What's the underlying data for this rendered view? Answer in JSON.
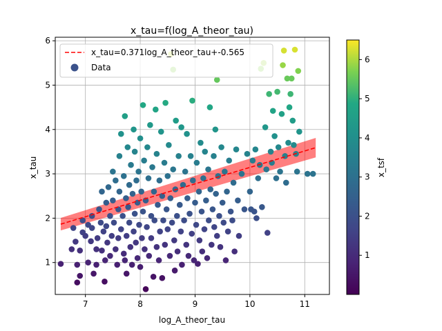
{
  "chart_data": {
    "type": "scatter",
    "title": "x_tau=f(log_A_theor_tau)",
    "xlabel": "log_A_theor_tau",
    "ylabel": "x_tau",
    "xlim": [
      6.45,
      11.45
    ],
    "ylim": [
      0.28,
      6.08
    ],
    "xticks": [
      7,
      8,
      9,
      10,
      11
    ],
    "yticks": [
      1,
      2,
      3,
      4,
      5,
      6
    ],
    "grid": true,
    "legend_position": "top-left",
    "fit": {
      "label": "x_tau=0.371log_A_theor_tau+-0.565",
      "slope": 0.371,
      "intercept": -0.565,
      "x_range": [
        6.55,
        11.2
      ],
      "band_halfwidth": [
        0.14,
        0.22
      ],
      "color": "#ff0000"
    },
    "scatter_label": "Data",
    "colorbar": {
      "label": "x_tsf",
      "range": [
        0,
        6.5
      ],
      "ticks": [
        1,
        2,
        3,
        4,
        5,
        6
      ],
      "colormap": "viridis"
    },
    "points": [
      [
        6.55,
        0.97
      ],
      [
        6.75,
        1.3
      ],
      [
        6.85,
        0.95
      ],
      [
        6.85,
        0.55
      ],
      [
        6.9,
        0.7
      ],
      [
        6.78,
        1.78
      ],
      [
        6.82,
        1.47
      ],
      [
        6.9,
        1.27
      ],
      [
        6.95,
        1.68
      ],
      [
        6.95,
        1.95
      ],
      [
        7.0,
        1.6
      ],
      [
        7.05,
        1.85
      ],
      [
        7.05,
        1.0
      ],
      [
        7.1,
        1.48
      ],
      [
        7.12,
        2.05
      ],
      [
        7.12,
        1.78
      ],
      [
        7.15,
        0.75
      ],
      [
        7.2,
        0.95
      ],
      [
        7.2,
        1.3
      ],
      [
        7.22,
        1.55
      ],
      [
        7.25,
        2.2
      ],
      [
        7.28,
        1.9
      ],
      [
        7.3,
        1.27
      ],
      [
        7.3,
        2.6
      ],
      [
        7.33,
        1.7
      ],
      [
        7.35,
        0.57
      ],
      [
        7.36,
        1.05
      ],
      [
        7.38,
        2.35
      ],
      [
        7.38,
        1.82
      ],
      [
        7.4,
        1.45
      ],
      [
        7.42,
        2.7
      ],
      [
        7.45,
        2.05
      ],
      [
        7.45,
        1.15
      ],
      [
        7.48,
        1.6
      ],
      [
        7.5,
        2.4
      ],
      [
        7.5,
        3.05
      ],
      [
        7.52,
        1.9
      ],
      [
        7.55,
        1.3
      ],
      [
        7.55,
        2.85
      ],
      [
        7.58,
        0.95
      ],
      [
        7.6,
        2.2
      ],
      [
        7.6,
        1.55
      ],
      [
        7.62,
        3.4
      ],
      [
        7.62,
        2.6
      ],
      [
        7.65,
        1.75
      ],
      [
        7.65,
        3.9
      ],
      [
        7.68,
        2.05
      ],
      [
        7.7,
        1.2
      ],
      [
        7.7,
        2.95
      ],
      [
        7.72,
        4.3
      ],
      [
        7.72,
        1.05
      ],
      [
        7.74,
        2.45
      ],
      [
        7.75,
        0.75
      ],
      [
        7.75,
        1.6
      ],
      [
        7.77,
        3.6
      ],
      [
        7.78,
        2.25
      ],
      [
        7.8,
        1.9
      ],
      [
        7.8,
        2.75
      ],
      [
        7.82,
        1.35
      ],
      [
        7.83,
        3.2
      ],
      [
        7.85,
        0.95
      ],
      [
        7.86,
        2.55
      ],
      [
        7.88,
        1.7
      ],
      [
        7.88,
        4.0
      ],
      [
        7.9,
        2.1
      ],
      [
        7.9,
        3.5
      ],
      [
        7.92,
        1.45
      ],
      [
        7.93,
        2.85
      ],
      [
        7.95,
        1.1
      ],
      [
        7.95,
        2.35
      ],
      [
        7.97,
        3.05
      ],
      [
        7.98,
        1.85
      ],
      [
        8.0,
        3.8
      ],
      [
        8.0,
        0.9
      ],
      [
        8.02,
        2.6
      ],
      [
        8.03,
        1.55
      ],
      [
        8.05,
        4.55
      ],
      [
        8.05,
        2.15
      ],
      [
        8.07,
        3.3
      ],
      [
        8.08,
        1.3
      ],
      [
        8.1,
        0.4
      ],
      [
        8.1,
        2.4
      ],
      [
        8.12,
        1.8
      ],
      [
        8.13,
        3.6
      ],
      [
        8.15,
        2.9
      ],
      [
        8.16,
        1.15
      ],
      [
        8.18,
        4.1
      ],
      [
        8.2,
        2.05
      ],
      [
        8.2,
        1.55
      ],
      [
        8.22,
        3.15
      ],
      [
        8.24,
        0.68
      ],
      [
        8.25,
        2.6
      ],
      [
        8.26,
        1.95
      ],
      [
        8.28,
        4.45
      ],
      [
        8.3,
        1.35
      ],
      [
        8.3,
        3.45
      ],
      [
        8.32,
        2.3
      ],
      [
        8.34,
        1.05
      ],
      [
        8.35,
        2.85
      ],
      [
        8.36,
        1.7
      ],
      [
        8.38,
        3.95
      ],
      [
        8.4,
        2.5
      ],
      [
        8.4,
        0.65
      ],
      [
        8.42,
        1.95
      ],
      [
        8.44,
        3.25
      ],
      [
        8.45,
        1.4
      ],
      [
        8.46,
        4.6
      ],
      [
        8.48,
        2.2
      ],
      [
        8.5,
        1.75
      ],
      [
        8.5,
        2.95
      ],
      [
        8.52,
        3.65
      ],
      [
        8.54,
        1.15
      ],
      [
        8.55,
        2.45
      ],
      [
        8.56,
        5.7
      ],
      [
        8.58,
        1.9
      ],
      [
        8.6,
        3.1
      ],
      [
        8.6,
        5.35
      ],
      [
        8.62,
        1.5
      ],
      [
        8.63,
        0.82
      ],
      [
        8.64,
        2.65
      ],
      [
        8.65,
        4.2
      ],
      [
        8.67,
        2.05
      ],
      [
        8.68,
        1.25
      ],
      [
        8.7,
        3.4
      ],
      [
        8.72,
        2.3
      ],
      [
        8.74,
        1.7
      ],
      [
        8.75,
        4.05
      ],
      [
        8.76,
        0.95
      ],
      [
        8.78,
        2.75
      ],
      [
        8.8,
        1.95
      ],
      [
        8.82,
        3.05
      ],
      [
        8.84,
        1.4
      ],
      [
        8.85,
        3.9
      ],
      [
        8.86,
        2.45
      ],
      [
        8.88,
        1.15
      ],
      [
        8.9,
        2.1
      ],
      [
        8.92,
        3.4
      ],
      [
        8.94,
        1.65
      ],
      [
        8.95,
        4.65
      ],
      [
        8.96,
        2.85
      ],
      [
        8.98,
        1.05
      ],
      [
        9.0,
        2.35
      ],
      [
        9.02,
        1.85
      ],
      [
        9.03,
        3.25
      ],
      [
        9.05,
        0.97
      ],
      [
        9.07,
        2.6
      ],
      [
        9.08,
        1.5
      ],
      [
        9.1,
        3.7
      ],
      [
        9.12,
        2.15
      ],
      [
        9.13,
        1.25
      ],
      [
        9.15,
        2.9
      ],
      [
        9.17,
        1.75
      ],
      [
        9.18,
        3.5
      ],
      [
        9.2,
        2.4
      ],
      [
        9.22,
        1.1
      ],
      [
        9.24,
        3.1
      ],
      [
        9.25,
        1.95
      ],
      [
        9.27,
        4.5
      ],
      [
        9.28,
        2.65
      ],
      [
        9.3,
        1.4
      ],
      [
        9.32,
        2.2
      ],
      [
        9.34,
        3.4
      ],
      [
        9.35,
        1.8
      ],
      [
        9.37,
        4.0
      ],
      [
        9.38,
        2.55
      ],
      [
        9.4,
        5.12
      ],
      [
        9.4,
        1.6
      ],
      [
        9.42,
        2.95
      ],
      [
        9.44,
        2.05
      ],
      [
        9.46,
        1.35
      ],
      [
        9.48,
        3.6
      ],
      [
        9.5,
        2.35
      ],
      [
        9.52,
        1.9
      ],
      [
        9.54,
        3.05
      ],
      [
        9.56,
        1.05
      ],
      [
        9.58,
        2.6
      ],
      [
        9.6,
        1.7
      ],
      [
        9.62,
        3.3
      ],
      [
        9.65,
        2.15
      ],
      [
        9.68,
        1.95
      ],
      [
        9.7,
        2.8
      ],
      [
        9.72,
        1.25
      ],
      [
        9.75,
        3.55
      ],
      [
        9.78,
        2.4
      ],
      [
        9.8,
        1.6
      ],
      [
        9.85,
        3.0
      ],
      [
        9.9,
        2.2
      ],
      [
        9.95,
        3.45
      ],
      [
        10.0,
        2.6
      ],
      [
        10.02,
        2.2
      ],
      [
        10.05,
        3.3
      ],
      [
        10.08,
        2.15
      ],
      [
        10.1,
        3.55
      ],
      [
        10.12,
        2.0
      ],
      [
        10.15,
        2.9
      ],
      [
        10.18,
        3.2
      ],
      [
        10.2,
        5.37
      ],
      [
        10.22,
        2.25
      ],
      [
        10.25,
        5.5
      ],
      [
        10.28,
        4.05
      ],
      [
        10.3,
        3.1
      ],
      [
        10.32,
        1.67
      ],
      [
        10.35,
        4.8
      ],
      [
        10.38,
        3.5
      ],
      [
        10.4,
        3.25
      ],
      [
        10.42,
        4.42
      ],
      [
        10.45,
        3.85
      ],
      [
        10.48,
        2.9
      ],
      [
        10.5,
        4.85
      ],
      [
        10.52,
        3.6
      ],
      [
        10.55,
        3.05
      ],
      [
        10.58,
        4.35
      ],
      [
        10.6,
        5.45
      ],
      [
        10.62,
        5.78
      ],
      [
        10.64,
        3.4
      ],
      [
        10.66,
        2.8
      ],
      [
        10.68,
        5.15
      ],
      [
        10.7,
        3.7
      ],
      [
        10.72,
        4.5
      ],
      [
        10.74,
        4.8
      ],
      [
        10.76,
        5.15
      ],
      [
        10.78,
        4.2
      ],
      [
        10.8,
        3.65
      ],
      [
        10.82,
        5.8
      ],
      [
        10.84,
        3.45
      ],
      [
        10.86,
        3.05
      ],
      [
        10.88,
        5.32
      ],
      [
        10.9,
        3.95
      ],
      [
        11.05,
        3.0
      ],
      [
        11.15,
        3.0
      ]
    ]
  }
}
